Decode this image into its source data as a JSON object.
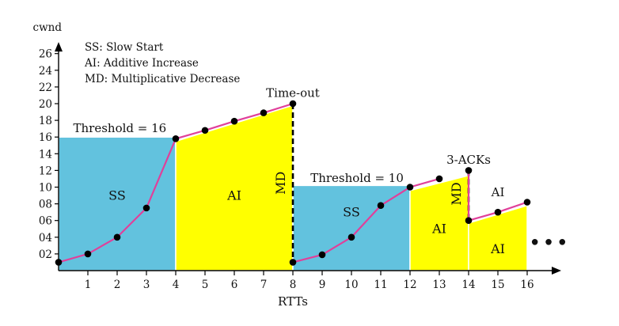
{
  "chart_data": {
    "type": "line",
    "xlabel": "RTTs",
    "ylabel": "cwnd",
    "xlim": [
      0,
      17
    ],
    "ylim": [
      0,
      27
    ],
    "x_ticks": [
      "1",
      "2",
      "3",
      "4",
      "5",
      "6",
      "7",
      "8",
      "9",
      "10",
      "11",
      "12",
      "13",
      "14",
      "15",
      "16"
    ],
    "y_ticks": [
      {
        "v": 2,
        "label": "02"
      },
      {
        "v": 4,
        "label": "04"
      },
      {
        "v": 6,
        "label": "06"
      },
      {
        "v": 8,
        "label": "08"
      },
      {
        "v": 10,
        "label": "10"
      },
      {
        "v": 12,
        "label": "12"
      },
      {
        "v": 14,
        "label": "14"
      },
      {
        "v": 16,
        "label": "16"
      },
      {
        "v": 18,
        "label": "18"
      },
      {
        "v": 20,
        "label": "20"
      },
      {
        "v": 22,
        "label": "22"
      },
      {
        "v": 24,
        "label": "24"
      },
      {
        "v": 26,
        "label": "26"
      }
    ],
    "points": [
      [
        0,
        1
      ],
      [
        1,
        2
      ],
      [
        2,
        4
      ],
      [
        3,
        7.5
      ],
      [
        4,
        15.8
      ],
      [
        5,
        16.8
      ],
      [
        6,
        17.9
      ],
      [
        7,
        18.9
      ],
      [
        8,
        20
      ],
      [
        8,
        1
      ],
      [
        9,
        1.9
      ],
      [
        10,
        4
      ],
      [
        11,
        7.8
      ],
      [
        12,
        10
      ],
      [
        13,
        11
      ],
      [
        14,
        12
      ],
      [
        14,
        6
      ],
      [
        15,
        7
      ],
      [
        16,
        8.2
      ]
    ],
    "segments": [
      [
        0,
        8
      ],
      [
        9,
        14
      ],
      [
        15,
        18
      ]
    ],
    "phases": [
      {
        "kind": "SS",
        "x0": 0,
        "x1": 4,
        "height": 16,
        "color": "#62c2de",
        "label": "SS",
        "label_x": 2,
        "label_y": 8.5
      },
      {
        "kind": "AI",
        "x0": 4,
        "x1": 8,
        "y0": 15.5,
        "y1": 19.8,
        "color": "#ffff00",
        "label": "AI",
        "label_x": 6,
        "label_y": 8.5
      },
      {
        "kind": "SS",
        "x0": 8,
        "x1": 12,
        "height": 10.2,
        "color": "#62c2de",
        "label": "SS",
        "label_x": 10,
        "label_y": 6.5
      },
      {
        "kind": "AI",
        "x0": 12,
        "x1": 14,
        "y0": 9.6,
        "y1": 11.4,
        "color": "#ffff00",
        "label": "AI",
        "label_x": 13,
        "label_y": 4.5
      },
      {
        "kind": "AI",
        "x0": 14,
        "x1": 16,
        "y0": 5.7,
        "y1": 7.8,
        "color": "#ffff00",
        "label": "AI",
        "label_x": 15,
        "label_y": 2.1
      }
    ],
    "md_drops": [
      {
        "x": 8,
        "from": 20,
        "to": 1,
        "label": "MD",
        "label_y": 10.5
      },
      {
        "x": 14,
        "from": 12,
        "to": 6,
        "label": "MD",
        "label_y": 9.2
      }
    ],
    "annotations": [
      {
        "text": "Threshold = 16",
        "x": 0.5,
        "y": 16.6,
        "anchor": "start"
      },
      {
        "text": "Threshold = 10",
        "x": 8.6,
        "y": 10.6,
        "anchor": "start"
      },
      {
        "text": "Time-out",
        "x": 8,
        "y": 20.8,
        "anchor": "middle"
      },
      {
        "text": "3-ACKs",
        "x": 14,
        "y": 12.8,
        "anchor": "middle"
      },
      {
        "text": "AI",
        "x": 15,
        "y": 8.9,
        "anchor": "middle"
      }
    ],
    "legend": [
      "SS: Slow Start",
      "AI: Additive Increase",
      "MD: Multiplicative Decrease"
    ],
    "continuation": "•••",
    "colors": {
      "line": "#e0409a",
      "ss": "#62c2de",
      "ai": "#ffff00",
      "axis": "#000000"
    }
  }
}
